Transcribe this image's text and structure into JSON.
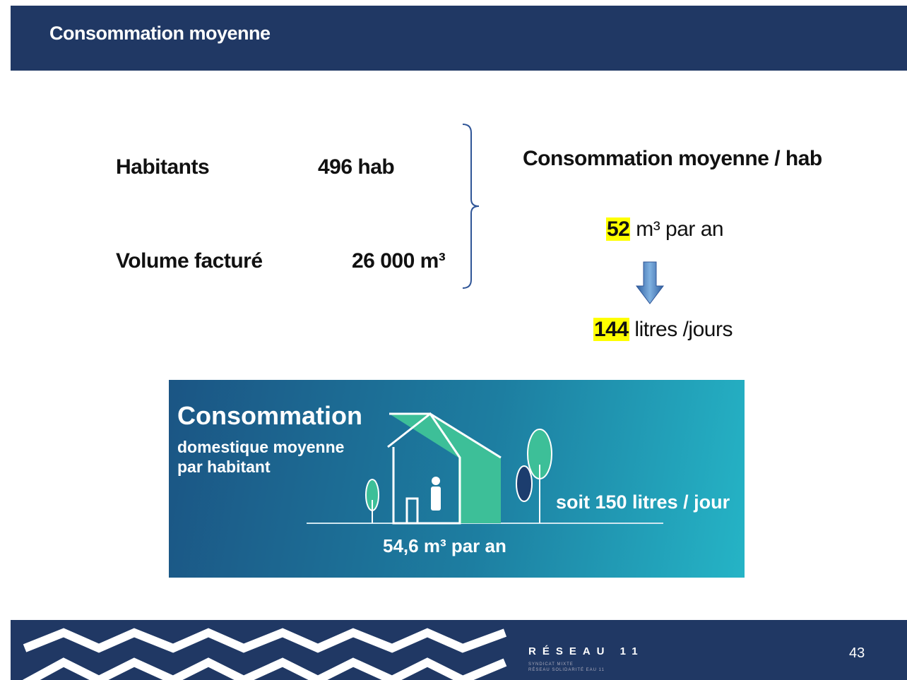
{
  "header": {
    "title": "Consommation moyenne"
  },
  "inputs": [
    {
      "label": "Habitants",
      "value": "496 hab"
    },
    {
      "label": "Volume facturé",
      "value": "26 000 m³"
    }
  ],
  "result": {
    "title": "Consommation moyenne / hab",
    "yearly": {
      "value": "52",
      "unit": "m³ par an"
    },
    "daily": {
      "value": "144",
      "unit": "litres /jours"
    }
  },
  "banner": {
    "title": "Consommation",
    "subtitle_lines": [
      "domestique moyenne",
      "par habitant"
    ],
    "yearly": "54,6 m³ par an",
    "daily": "soit 150 litres / jour"
  },
  "footer": {
    "logo": "RÉSEAU 11",
    "logo_lines": [
      "SYNDICAT MIXTE",
      "RÉSEAU SOLIDARITÉ EAU 11"
    ],
    "page": "43"
  }
}
